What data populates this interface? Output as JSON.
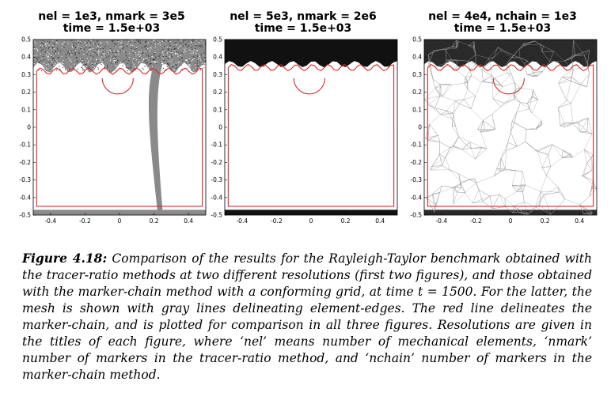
{
  "panels": [
    {
      "title_line1": "nel = 1e3, nmark = 3e5",
      "title_line2": "time = 1.5e+03",
      "style": "markers-low"
    },
    {
      "title_line1": "nel = 5e3, nmark = 2e6",
      "title_line2": "time = 1.5e+03",
      "style": "markers-high"
    },
    {
      "title_line1": "nel = 4e4, nchain = 1e3",
      "title_line2": "time = 1.5e+03",
      "style": "mesh"
    }
  ],
  "axes": {
    "y_ticks": [
      "0.5",
      "0.4",
      "0.3",
      "0.2",
      "0.1",
      "0",
      "-0.1",
      "-0.2",
      "-0.3",
      "-0.4",
      "-0.5"
    ],
    "x_ticks": [
      "-0.4",
      "-0.2",
      "0",
      "0.2",
      "0.4"
    ],
    "xlim": [
      -0.5,
      0.5
    ],
    "ylim": [
      -0.5,
      0.5
    ]
  },
  "colors": {
    "chain": "#d42a2a",
    "dense_fluid": "#111111",
    "mesh": "#9a9a9a"
  },
  "caption": {
    "figure_label": "Figure 4.18:",
    "text": "Comparison of the results for the Rayleigh-Taylor benchmark obtained with the tracer-ratio methods at two different resolutions (first two figures), and those obtained with the marker-chain method with a conforming grid, at time t = 1500. For the latter, the mesh is shown with gray lines delineating element-edges. The red line delineates the marker-chain, and is plotted for comparison in all three figures. Resolutions are given in the titles of each figure, where ‘nel’ means number of mechanical elements, ‘nmark’ number of markers in the tracer-ratio method, and ‘nchain’ number of markers in the marker-chain method."
  }
}
